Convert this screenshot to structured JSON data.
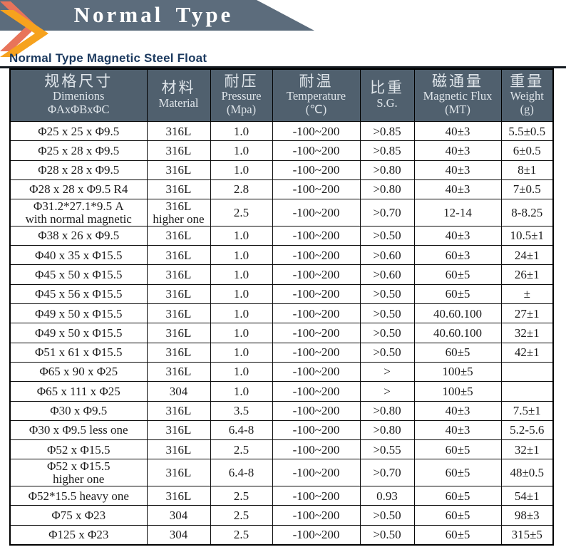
{
  "banner": {
    "title": "Normal Type",
    "bg_color": "#5c6c7c",
    "chevron_inner_color": "#e8745a",
    "chevron_outer_color": "#f6a21e"
  },
  "subtitle": "Normal Type Magnetic Steel Float",
  "subtitle_color": "#1c3a5f",
  "table": {
    "header_bg": "#50606e",
    "header_text_color": "#dfe5ea",
    "columns": [
      {
        "zh": "规格尺寸",
        "en": "Dimenions",
        "sub": "ΦAxΦBxΦC"
      },
      {
        "zh": "材料",
        "en": "Material",
        "sub": ""
      },
      {
        "zh": "耐压",
        "en": "Pressure",
        "sub": "(Mpa)"
      },
      {
        "zh": "耐温",
        "en": "Temperature",
        "sub": "(℃)"
      },
      {
        "zh": "比重",
        "en": "S.G.",
        "sub": ""
      },
      {
        "zh": "磁通量",
        "en": "Magnetic Flux",
        "sub": "(MT)"
      },
      {
        "zh": "重量",
        "en": "Weight",
        "sub": "(g)"
      }
    ],
    "rows": [
      [
        "Φ25 x 25 x Φ9.5",
        "316L",
        "1.0",
        "-100~200",
        ">0.85",
        "40±3",
        "5.5±0.5"
      ],
      [
        "Φ25 x 28 x Φ9.5",
        "316L",
        "1.0",
        "-100~200",
        ">0.85",
        "40±3",
        "6±0.5"
      ],
      [
        "Φ28 x 28 x Φ9.5",
        "316L",
        "1.0",
        "-100~200",
        ">0.80",
        "40±3",
        "8±1"
      ],
      [
        "Φ28 x 28 x Φ9.5 R4",
        "316L",
        "2.8",
        "-100~200",
        ">0.80",
        "40±3",
        "7±0.5"
      ],
      [
        "Φ31.2*27.1*9.5 A\nwith normal magnetic",
        "316L\nhigher one",
        "2.5",
        "-100~200",
        ">0.70",
        "12-14",
        "8-8.25"
      ],
      [
        "Φ38 x 26 x Φ9.5",
        "316L",
        "1.0",
        "-100~200",
        ">0.50",
        "40±3",
        "10.5±1"
      ],
      [
        "Φ40 x 35 x Φ15.5",
        "316L",
        "1.0",
        "-100~200",
        ">0.60",
        "60±3",
        "24±1"
      ],
      [
        "Φ45 x 50 x Φ15.5",
        "316L",
        "1.0",
        "-100~200",
        ">0.60",
        "60±5",
        "26±1"
      ],
      [
        "Φ45 x 56 x Φ15.5",
        "316L",
        "1.0",
        "-100~200",
        ">0.50",
        "60±5",
        "±"
      ],
      [
        "Φ49 x 50 x Φ15.5",
        "316L",
        "1.0",
        "-100~200",
        ">0.50",
        "40.60.100",
        "27±1"
      ],
      [
        "Φ49 x 50 x Φ15.5",
        "316L",
        "1.0",
        "-100~200",
        ">0.50",
        "40.60.100",
        "32±1"
      ],
      [
        "Φ51 x 61 x Φ15.5",
        "316L",
        "1.0",
        "-100~200",
        ">0.50",
        "60±5",
        "42±1"
      ],
      [
        "Φ65 x 90 x Φ25",
        "316L",
        "1.0",
        "-100~200",
        ">",
        "100±5",
        ""
      ],
      [
        "Φ65 x 111 x Φ25",
        "304",
        "1.0",
        "-100~200",
        ">",
        "100±5",
        ""
      ],
      [
        "Φ30 x Φ9.5",
        "316L",
        "3.5",
        "-100~200",
        ">0.80",
        "40±3",
        "7.5±1"
      ],
      [
        "Φ30 x Φ9.5 less one",
        "316L",
        "6.4-8",
        "-100~200",
        ">0.80",
        "40±3",
        "5.2-5.6"
      ],
      [
        "Φ52 x Φ15.5",
        "316L",
        "2.5",
        "-100~200",
        ">0.55",
        "60±5",
        "32±1"
      ],
      [
        "Φ52 x Φ15.5\nhigher one",
        "316L",
        "6.4-8",
        "-100~200",
        ">0.70",
        "60±5",
        "48±0.5"
      ],
      [
        "Φ52*15.5 heavy one",
        "316L",
        "2.5",
        "-100~200",
        "0.93",
        "60±5",
        "54±1"
      ],
      [
        "Φ75 x Φ23",
        "304",
        "2.5",
        "-100~200",
        ">0.50",
        "60±5",
        "98±3"
      ],
      [
        "Φ125 x Φ23",
        "304",
        "2.5",
        "-100~200",
        ">0.50",
        "60±5",
        "315±5"
      ]
    ]
  }
}
